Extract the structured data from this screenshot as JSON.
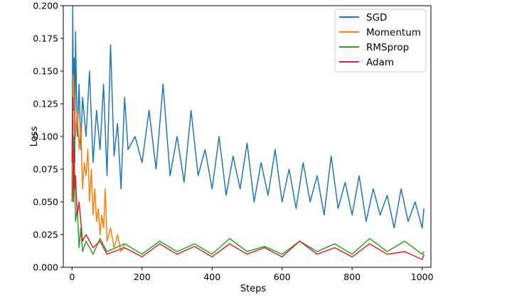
{
  "chart_data": {
    "type": "line",
    "title": "",
    "xlabel": "Steps",
    "ylabel": "Loss",
    "xlim": [
      -25,
      1025
    ],
    "ylim": [
      0.0,
      0.2
    ],
    "xticks": [
      0,
      200,
      400,
      600,
      800,
      1000
    ],
    "yticks": [
      0.0,
      0.025,
      0.05,
      0.075,
      0.1,
      0.125,
      0.15,
      0.175,
      0.2
    ],
    "ytick_labels": [
      "0.000",
      "0.025",
      "0.050",
      "0.075",
      "0.100",
      "0.125",
      "0.150",
      "0.175",
      "0.200"
    ],
    "xtick_labels": [
      "0",
      "200",
      "400",
      "600",
      "800",
      "1000"
    ],
    "grid": false,
    "legend_position": "top-right",
    "series": [
      {
        "name": "SGD",
        "color": "#1f77b4",
        "x": [
          0,
          2,
          4,
          6,
          8,
          10,
          15,
          20,
          25,
          30,
          40,
          50,
          60,
          70,
          80,
          90,
          100,
          110,
          120,
          130,
          140,
          150,
          160,
          180,
          200,
          220,
          240,
          260,
          280,
          300,
          320,
          340,
          360,
          380,
          400,
          420,
          440,
          460,
          480,
          500,
          520,
          540,
          560,
          580,
          600,
          620,
          640,
          660,
          680,
          700,
          720,
          740,
          760,
          780,
          800,
          820,
          840,
          860,
          880,
          900,
          920,
          940,
          960,
          980,
          1000,
          1005
        ],
        "y": [
          0.05,
          0.2,
          0.12,
          0.16,
          0.08,
          0.18,
          0.1,
          0.14,
          0.09,
          0.13,
          0.1,
          0.15,
          0.08,
          0.12,
          0.09,
          0.14,
          0.07,
          0.17,
          0.085,
          0.11,
          0.06,
          0.13,
          0.09,
          0.1,
          0.08,
          0.12,
          0.075,
          0.14,
          0.07,
          0.1,
          0.065,
          0.12,
          0.07,
          0.09,
          0.06,
          0.1,
          0.055,
          0.085,
          0.06,
          0.095,
          0.05,
          0.08,
          0.055,
          0.09,
          0.05,
          0.075,
          0.045,
          0.08,
          0.05,
          0.07,
          0.04,
          0.085,
          0.045,
          0.065,
          0.04,
          0.07,
          0.035,
          0.06,
          0.04,
          0.055,
          0.03,
          0.06,
          0.035,
          0.05,
          0.03,
          0.045
        ]
      },
      {
        "name": "Momentum",
        "color": "#ff7f0e",
        "x": [
          0,
          3,
          6,
          10,
          15,
          20,
          25,
          30,
          35,
          40,
          45,
          50,
          55,
          60,
          65,
          70,
          75,
          80,
          85,
          90,
          95,
          100,
          110,
          120,
          130,
          140,
          150
        ],
        "y": [
          0.05,
          0.147,
          0.13,
          0.1,
          0.12,
          0.09,
          0.11,
          0.06,
          0.08,
          0.07,
          0.09,
          0.05,
          0.075,
          0.04,
          0.06,
          0.035,
          0.045,
          0.025,
          0.04,
          0.03,
          0.06,
          0.02,
          0.03,
          0.015,
          0.025,
          0.012,
          0.018
        ]
      },
      {
        "name": "RMSprop",
        "color": "#2ca02c",
        "x": [
          0,
          5,
          10,
          15,
          20,
          25,
          30,
          40,
          60,
          80,
          100,
          150,
          200,
          250,
          300,
          350,
          400,
          450,
          500,
          550,
          600,
          650,
          700,
          750,
          800,
          850,
          900,
          950,
          1000,
          1005
        ],
        "y": [
          0.05,
          0.1,
          0.035,
          0.045,
          0.015,
          0.03,
          0.012,
          0.02,
          0.01,
          0.022,
          0.012,
          0.018,
          0.01,
          0.02,
          0.012,
          0.018,
          0.01,
          0.022,
          0.012,
          0.016,
          0.01,
          0.02,
          0.012,
          0.018,
          0.01,
          0.022,
          0.012,
          0.02,
          0.01,
          0.012
        ]
      },
      {
        "name": "Adam",
        "color": "#d62728",
        "x": [
          0,
          2,
          4,
          6,
          8,
          10,
          15,
          20,
          30,
          40,
          60,
          80,
          100,
          150,
          200,
          250,
          300,
          350,
          400,
          450,
          500,
          550,
          600,
          650,
          700,
          750,
          800,
          850,
          900,
          950,
          1000,
          1005
        ],
        "y": [
          0.08,
          0.13,
          0.05,
          0.09,
          0.06,
          0.07,
          0.04,
          0.05,
          0.02,
          0.025,
          0.015,
          0.02,
          0.01,
          0.015,
          0.008,
          0.018,
          0.01,
          0.016,
          0.008,
          0.018,
          0.01,
          0.015,
          0.008,
          0.02,
          0.01,
          0.015,
          0.008,
          0.018,
          0.01,
          0.012,
          0.006,
          0.01
        ]
      }
    ]
  }
}
